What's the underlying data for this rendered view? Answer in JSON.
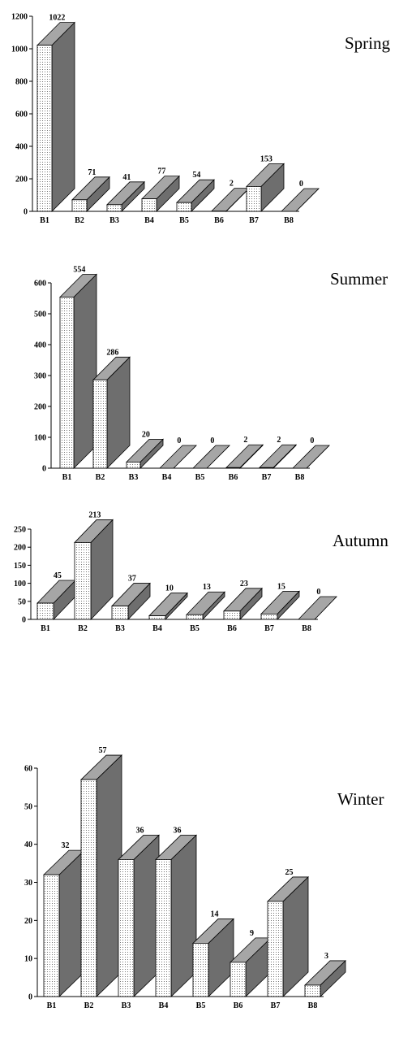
{
  "chart_data": [
    {
      "type": "bar",
      "title": "Spring",
      "categories": [
        "B1",
        "B2",
        "B3",
        "B4",
        "B5",
        "B6",
        "B7",
        "B8"
      ],
      "values": [
        1022,
        71,
        41,
        77,
        54,
        2,
        153,
        0
      ],
      "data_labels": [
        "1022",
        "71",
        "41",
        "77",
        "54",
        "2",
        "153",
        "0"
      ],
      "ylim": [
        0,
        1200
      ],
      "yticks": [
        0,
        200,
        400,
        600,
        800,
        1000,
        1200
      ],
      "grid": false
    },
    {
      "type": "bar",
      "title": "Summer",
      "categories": [
        "B1",
        "B2",
        "B3",
        "B4",
        "B5",
        "B6",
        "B7",
        "B8"
      ],
      "values": [
        554,
        286,
        20,
        0,
        0,
        2,
        2,
        0
      ],
      "data_labels": [
        "554",
        "286",
        "20",
        "0",
        "0",
        "2",
        "2",
        "0"
      ],
      "ylim": [
        0,
        600
      ],
      "yticks": [
        0,
        100,
        200,
        300,
        400,
        500,
        600
      ],
      "grid": false
    },
    {
      "type": "bar",
      "title": "Autumn",
      "categories": [
        "B1",
        "B2",
        "B3",
        "B4",
        "B5",
        "B6",
        "B7",
        "B8"
      ],
      "values": [
        45,
        213,
        37,
        10,
        13,
        23,
        15,
        0
      ],
      "data_labels": [
        "45",
        "213",
        "37",
        "10",
        "13",
        "23",
        "15",
        "0"
      ],
      "ylim": [
        0,
        250
      ],
      "yticks": [
        0,
        50,
        100,
        150,
        200,
        250
      ],
      "grid": false
    },
    {
      "type": "bar",
      "title": "Winter",
      "categories": [
        "B1",
        "B2",
        "B3",
        "B4",
        "B5",
        "B6",
        "B7",
        "B8"
      ],
      "values": [
        32,
        57,
        36,
        36,
        14,
        9,
        25,
        3
      ],
      "data_labels": [
        "32",
        "57",
        "36",
        "36",
        "14",
        "9",
        "25",
        "3"
      ],
      "ylim": [
        0,
        60
      ],
      "yticks": [
        0,
        10,
        20,
        30,
        40,
        50,
        60
      ],
      "grid": false
    }
  ]
}
